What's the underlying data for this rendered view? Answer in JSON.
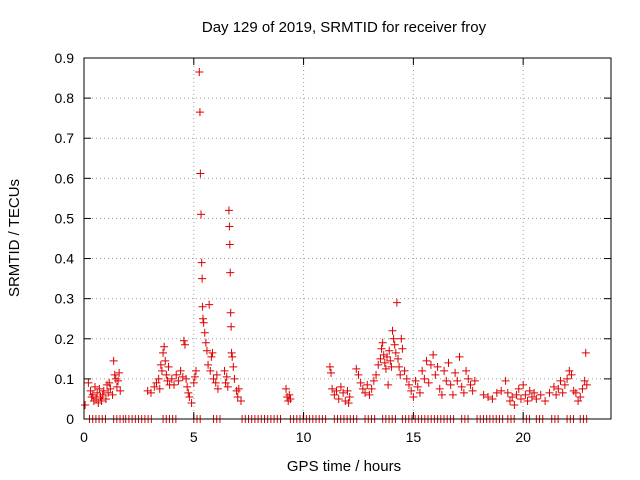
{
  "chart_data": {
    "type": "scatter",
    "title": "Day 129 of 2019, SRMTID for receiver froy",
    "xlabel": "GPS time / hours",
    "ylabel": "SRMTID / TECUs",
    "xlim": [
      0,
      24
    ],
    "ylim": [
      0,
      0.9
    ],
    "xticks": [
      0,
      5,
      10,
      15,
      20
    ],
    "yticks": [
      0,
      0.1,
      0.2,
      0.3,
      0.4,
      0.5,
      0.6,
      0.7,
      0.8,
      0.9
    ],
    "ytick_labels": [
      "0",
      "0.1",
      "0.2",
      "0.3",
      "0.4",
      "0.5",
      "0.6",
      "0.7",
      "0.8",
      "0.9"
    ],
    "grid": true,
    "marker": "+",
    "marker_color": "#dd0000",
    "series": [
      {
        "name": "SRMTID",
        "points": [
          [
            0.05,
            0.035
          ],
          [
            0.2,
            0.09
          ],
          [
            0.3,
            0.07
          ],
          [
            0.35,
            0.055
          ],
          [
            0.4,
            0.06
          ],
          [
            0.45,
            0.045
          ],
          [
            0.5,
            0.08
          ],
          [
            0.55,
            0.05
          ],
          [
            0.6,
            0.065
          ],
          [
            0.65,
            0.04
          ],
          [
            0.7,
            0.075
          ],
          [
            0.75,
            0.055
          ],
          [
            0.8,
            0.045
          ],
          [
            0.85,
            0.06
          ],
          [
            0.9,
            0.07
          ],
          [
            1.0,
            0.05
          ],
          [
            1.05,
            0.085
          ],
          [
            1.1,
            0.065
          ],
          [
            1.15,
            0.09
          ],
          [
            1.2,
            0.075
          ],
          [
            1.3,
            0.06
          ],
          [
            1.35,
            0.145
          ],
          [
            1.4,
            0.11
          ],
          [
            1.45,
            0.1
          ],
          [
            1.5,
            0.08
          ],
          [
            1.55,
            0.095
          ],
          [
            1.6,
            0.115
          ],
          [
            1.65,
            0.07
          ],
          [
            2.9,
            0.07
          ],
          [
            3.05,
            0.065
          ],
          [
            3.2,
            0.08
          ],
          [
            3.3,
            0.09
          ],
          [
            3.4,
            0.1
          ],
          [
            3.45,
            0.075
          ],
          [
            3.5,
            0.135
          ],
          [
            3.55,
            0.12
          ],
          [
            3.6,
            0.165
          ],
          [
            3.65,
            0.18
          ],
          [
            3.7,
            0.145
          ],
          [
            3.75,
            0.11
          ],
          [
            3.8,
            0.095
          ],
          [
            3.85,
            0.13
          ],
          [
            3.9,
            0.085
          ],
          [
            4.0,
            0.1
          ],
          [
            4.1,
            0.085
          ],
          [
            4.2,
            0.11
          ],
          [
            4.3,
            0.095
          ],
          [
            4.4,
            0.12
          ],
          [
            4.5,
            0.105
          ],
          [
            4.55,
            0.195
          ],
          [
            4.6,
            0.185
          ],
          [
            4.65,
            0.1
          ],
          [
            4.7,
            0.08
          ],
          [
            4.75,
            0.065
          ],
          [
            4.8,
            0.055
          ],
          [
            4.9,
            0.04
          ],
          [
            5.0,
            0.09
          ],
          [
            5.05,
            0.105
          ],
          [
            5.1,
            0.12
          ],
          [
            5.25,
            0.865
          ],
          [
            5.28,
            0.765
          ],
          [
            5.3,
            0.612
          ],
          [
            5.33,
            0.51
          ],
          [
            5.36,
            0.39
          ],
          [
            5.38,
            0.35
          ],
          [
            5.4,
            0.28
          ],
          [
            5.42,
            0.25
          ],
          [
            5.45,
            0.24
          ],
          [
            5.5,
            0.215
          ],
          [
            5.55,
            0.19
          ],
          [
            5.6,
            0.17
          ],
          [
            5.65,
            0.135
          ],
          [
            5.7,
            0.285
          ],
          [
            5.75,
            0.12
          ],
          [
            5.8,
            0.155
          ],
          [
            5.85,
            0.165
          ],
          [
            5.9,
            0.1
          ],
          [
            6.0,
            0.09
          ],
          [
            6.05,
            0.11
          ],
          [
            6.1,
            0.075
          ],
          [
            6.4,
            0.12
          ],
          [
            6.45,
            0.09
          ],
          [
            6.5,
            0.105
          ],
          [
            6.55,
            0.08
          ],
          [
            6.6,
            0.52
          ],
          [
            6.62,
            0.48
          ],
          [
            6.64,
            0.435
          ],
          [
            6.66,
            0.365
          ],
          [
            6.68,
            0.265
          ],
          [
            6.7,
            0.23
          ],
          [
            6.72,
            0.165
          ],
          [
            6.75,
            0.155
          ],
          [
            6.8,
            0.13
          ],
          [
            6.85,
            0.1
          ],
          [
            6.95,
            0.07
          ],
          [
            7.0,
            0.055
          ],
          [
            7.05,
            0.075
          ],
          [
            7.15,
            0.045
          ],
          [
            9.2,
            0.075
          ],
          [
            9.25,
            0.055
          ],
          [
            9.3,
            0.045
          ],
          [
            9.35,
            0.06
          ],
          [
            9.4,
            0.05
          ],
          [
            11.2,
            0.13
          ],
          [
            11.25,
            0.115
          ],
          [
            11.3,
            0.075
          ],
          [
            11.4,
            0.06
          ],
          [
            11.5,
            0.07
          ],
          [
            11.6,
            0.05
          ],
          [
            11.7,
            0.08
          ],
          [
            11.8,
            0.065
          ],
          [
            11.9,
            0.045
          ],
          [
            12.0,
            0.07
          ],
          [
            12.05,
            0.04
          ],
          [
            12.1,
            0.055
          ],
          [
            12.4,
            0.125
          ],
          [
            12.5,
            0.11
          ],
          [
            12.6,
            0.09
          ],
          [
            12.7,
            0.075
          ],
          [
            12.8,
            0.065
          ],
          [
            12.9,
            0.085
          ],
          [
            13.0,
            0.06
          ],
          [
            13.1,
            0.075
          ],
          [
            13.2,
            0.095
          ],
          [
            13.3,
            0.11
          ],
          [
            13.4,
            0.135
          ],
          [
            13.5,
            0.15
          ],
          [
            13.55,
            0.175
          ],
          [
            13.6,
            0.19
          ],
          [
            13.65,
            0.16
          ],
          [
            13.7,
            0.14
          ],
          [
            13.75,
            0.125
          ],
          [
            13.8,
            0.155
          ],
          [
            13.85,
            0.085
          ],
          [
            13.9,
            0.17
          ],
          [
            13.95,
            0.145
          ],
          [
            14.0,
            0.13
          ],
          [
            14.05,
            0.22
          ],
          [
            14.1,
            0.2
          ],
          [
            14.15,
            0.185
          ],
          [
            14.2,
            0.165
          ],
          [
            14.25,
            0.29
          ],
          [
            14.3,
            0.15
          ],
          [
            14.35,
            0.13
          ],
          [
            14.4,
            0.11
          ],
          [
            14.45,
            0.2
          ],
          [
            14.5,
            0.175
          ],
          [
            14.6,
            0.12
          ],
          [
            14.7,
            0.1
          ],
          [
            14.8,
            0.085
          ],
          [
            14.9,
            0.07
          ],
          [
            15.0,
            0.055
          ],
          [
            15.1,
            0.095
          ],
          [
            15.2,
            0.08
          ],
          [
            15.3,
            0.065
          ],
          [
            15.4,
            0.12
          ],
          [
            15.5,
            0.1
          ],
          [
            15.6,
            0.145
          ],
          [
            15.7,
            0.09
          ],
          [
            15.8,
            0.135
          ],
          [
            15.9,
            0.16
          ],
          [
            16.0,
            0.11
          ],
          [
            16.1,
            0.13
          ],
          [
            16.2,
            0.075
          ],
          [
            16.3,
            0.06
          ],
          [
            16.4,
            0.12
          ],
          [
            16.5,
            0.095
          ],
          [
            16.6,
            0.14
          ],
          [
            16.7,
            0.085
          ],
          [
            16.8,
            0.06
          ],
          [
            16.9,
            0.115
          ],
          [
            17.0,
            0.095
          ],
          [
            17.1,
            0.155
          ],
          [
            17.2,
            0.08
          ],
          [
            17.3,
            0.065
          ],
          [
            17.4,
            0.12
          ],
          [
            17.5,
            0.1
          ],
          [
            17.6,
            0.085
          ],
          [
            17.7,
            0.07
          ],
          [
            17.8,
            0.095
          ],
          [
            18.2,
            0.06
          ],
          [
            18.4,
            0.055
          ],
          [
            18.6,
            0.05
          ],
          [
            18.8,
            0.065
          ],
          [
            19.0,
            0.07
          ],
          [
            19.2,
            0.095
          ],
          [
            19.3,
            0.065
          ],
          [
            19.4,
            0.045
          ],
          [
            19.5,
            0.055
          ],
          [
            19.6,
            0.035
          ],
          [
            19.7,
            0.06
          ],
          [
            19.8,
            0.075
          ],
          [
            19.9,
            0.05
          ],
          [
            20.0,
            0.085
          ],
          [
            20.1,
            0.06
          ],
          [
            20.2,
            0.045
          ],
          [
            20.3,
            0.07
          ],
          [
            20.4,
            0.055
          ],
          [
            20.5,
            0.065
          ],
          [
            20.6,
            0.05
          ],
          [
            20.8,
            0.06
          ],
          [
            21.0,
            0.045
          ],
          [
            21.2,
            0.065
          ],
          [
            21.4,
            0.08
          ],
          [
            21.5,
            0.06
          ],
          [
            21.6,
            0.075
          ],
          [
            21.7,
            0.095
          ],
          [
            21.8,
            0.065
          ],
          [
            21.9,
            0.085
          ],
          [
            22.0,
            0.1
          ],
          [
            22.1,
            0.12
          ],
          [
            22.2,
            0.11
          ],
          [
            22.3,
            0.07
          ],
          [
            22.4,
            0.065
          ],
          [
            22.5,
            0.045
          ],
          [
            22.6,
            0.055
          ],
          [
            22.7,
            0.075
          ],
          [
            22.8,
            0.095
          ],
          [
            22.85,
            0.165
          ],
          [
            22.9,
            0.085
          ]
        ],
        "zero_segments": [
          [
            0.25,
            1.0
          ],
          [
            1.35,
            1.8
          ],
          [
            1.9,
            3.2
          ],
          [
            3.6,
            4.2
          ],
          [
            5.0,
            5.4
          ],
          [
            5.9,
            6.2
          ],
          [
            7.2,
            9.0
          ],
          [
            9.4,
            11.1
          ],
          [
            11.4,
            12.5
          ],
          [
            12.8,
            13.3
          ],
          [
            13.6,
            14.2
          ],
          [
            14.5,
            16.9
          ],
          [
            17.2,
            17.6
          ],
          [
            17.9,
            19.1
          ],
          [
            19.3,
            19.7
          ],
          [
            20.0,
            20.3
          ],
          [
            20.6,
            21.0
          ],
          [
            21.3,
            21.7
          ],
          [
            22.0,
            22.4
          ],
          [
            22.6,
            22.9
          ]
        ]
      }
    ]
  }
}
